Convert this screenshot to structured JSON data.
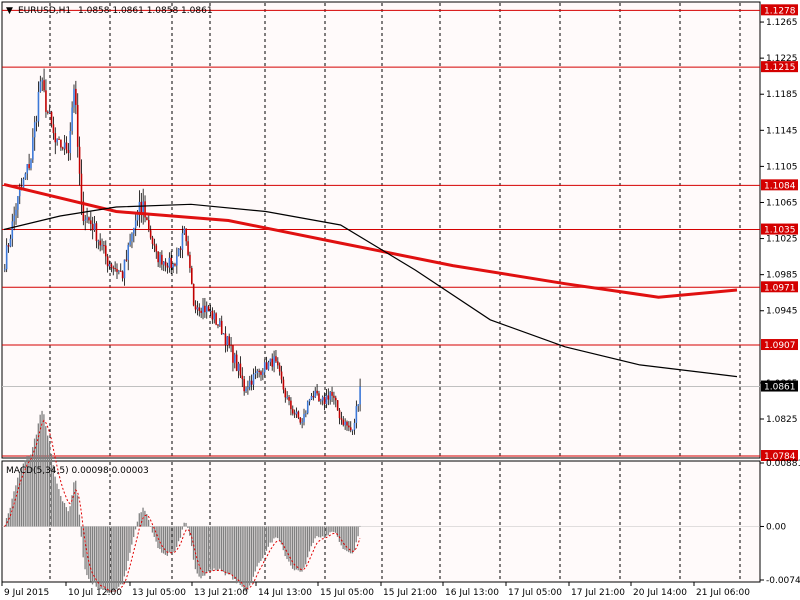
{
  "header": {
    "symbol": "EURUSD,H1",
    "ohlc": "1.0858 1.0861 1.0858 1.0861"
  },
  "current_price": "1.0861",
  "price_axis": {
    "ticks": [
      "1.1265",
      "1.1225",
      "1.1185",
      "1.1145",
      "1.1105",
      "1.1065",
      "1.1025",
      "1.0985",
      "1.0945",
      "1.0865",
      "1.0825"
    ],
    "range": [
      1.0784,
      1.1285
    ]
  },
  "horizontal_levels": [
    {
      "label": "1.1278",
      "value": 1.1278
    },
    {
      "label": "1.1215",
      "value": 1.1215
    },
    {
      "label": "1.1084",
      "value": 1.1084
    },
    {
      "label": "1.1035",
      "value": 1.1035
    },
    {
      "label": "1.0971",
      "value": 1.0971
    },
    {
      "label": "1.0907",
      "value": 1.0907
    },
    {
      "label": "1.0784",
      "value": 1.0784
    }
  ],
  "macd": {
    "label": "MACD(5,34,5) 0.00098 0.00003",
    "ticks": [
      "0.00881",
      "0.00",
      "-0.00743"
    ],
    "range": [
      -0.00743,
      0.00881
    ]
  },
  "time_axis": {
    "labels": [
      "9 Jul 2015",
      "10 Jul 12:00",
      "13 Jul 05:00",
      "13 Jul 21:00",
      "14 Jul 13:00",
      "15 Jul 05:00",
      "15 Jul 21:00",
      "16 Jul 13:00",
      "17 Jul 05:00",
      "17 Jul 21:00",
      "20 Jul 14:00",
      "21 Jul 06:00"
    ]
  },
  "colors": {
    "bull": "#3c78d8",
    "bear": "#c00000",
    "level": "#d40000",
    "ma_red": "#e01010",
    "ma_black": "#000000",
    "macd_hist": "#808080",
    "macd_signal": "#e00000",
    "current_tag": "#000000",
    "grid": "#000000"
  },
  "chart_data": {
    "type": "candlestick",
    "symbol": "EURUSD",
    "timeframe": "H1",
    "segments": [
      {
        "bars": 7,
        "start": 1.099,
        "end": 1.106,
        "vol": 0.0018
      },
      {
        "bars": 8,
        "start": 1.106,
        "end": 1.1115,
        "vol": 0.002
      },
      {
        "bars": 5,
        "start": 1.1115,
        "end": 1.12,
        "vol": 0.0025
      },
      {
        "bars": 8,
        "start": 1.12,
        "end": 1.113,
        "vol": 0.0022
      },
      {
        "bars": 7,
        "start": 1.113,
        "end": 1.1125,
        "vol": 0.0015
      },
      {
        "bars": 3,
        "start": 1.1125,
        "end": 1.1195,
        "vol": 0.002
      },
      {
        "bars": 4,
        "start": 1.1195,
        "end": 1.1055,
        "vol": 0.003
      },
      {
        "bars": 6,
        "start": 1.1055,
        "end": 1.104,
        "vol": 0.0018
      },
      {
        "bars": 8,
        "start": 1.104,
        "end": 1.1,
        "vol": 0.0017
      },
      {
        "bars": 8,
        "start": 1.1,
        "end": 1.0985,
        "vol": 0.0015
      },
      {
        "bars": 7,
        "start": 1.0985,
        "end": 1.1045,
        "vol": 0.002
      },
      {
        "bars": 4,
        "start": 1.1045,
        "end": 1.106,
        "vol": 0.003
      },
      {
        "bars": 7,
        "start": 1.106,
        "end": 1.1005,
        "vol": 0.0015
      },
      {
        "bars": 9,
        "start": 1.1005,
        "end": 1.0995,
        "vol": 0.0013
      },
      {
        "bars": 6,
        "start": 1.0995,
        "end": 1.103,
        "vol": 0.0016
      },
      {
        "bars": 5,
        "start": 1.103,
        "end": 1.0955,
        "vol": 0.0018
      },
      {
        "bars": 8,
        "start": 1.0955,
        "end": 1.0945,
        "vol": 0.0015
      },
      {
        "bars": 7,
        "start": 1.0945,
        "end": 1.0925,
        "vol": 0.0015
      },
      {
        "bars": 7,
        "start": 1.0925,
        "end": 1.089,
        "vol": 0.0016
      },
      {
        "bars": 5,
        "start": 1.089,
        "end": 1.086,
        "vol": 0.0018
      },
      {
        "bars": 9,
        "start": 1.086,
        "end": 1.088,
        "vol": 0.0013
      },
      {
        "bars": 7,
        "start": 1.088,
        "end": 1.089,
        "vol": 0.0012
      },
      {
        "bars": 8,
        "start": 1.089,
        "end": 1.084,
        "vol": 0.0014
      },
      {
        "bars": 7,
        "start": 1.084,
        "end": 1.082,
        "vol": 0.0012
      },
      {
        "bars": 5,
        "start": 1.082,
        "end": 1.0855,
        "vol": 0.0015
      },
      {
        "bars": 5,
        "start": 1.0855,
        "end": 1.084,
        "vol": 0.0015
      },
      {
        "bars": 5,
        "start": 1.084,
        "end": 1.0855,
        "vol": 0.0015
      },
      {
        "bars": 6,
        "start": 1.0855,
        "end": 1.0825,
        "vol": 0.0013
      },
      {
        "bars": 6,
        "start": 1.0825,
        "end": 1.081,
        "vol": 0.0012
      },
      {
        "bars": 4,
        "start": 1.081,
        "end": 1.0861,
        "vol": 0.0015
      }
    ],
    "ma_red": [
      [
        0,
        1.1085
      ],
      [
        60,
        1.1055
      ],
      [
        120,
        1.1045
      ],
      [
        180,
        1.102
      ],
      [
        240,
        1.0995
      ],
      [
        300,
        1.0975
      ],
      [
        350,
        1.096
      ],
      [
        392,
        1.0968
      ]
    ],
    "ma_black": [
      [
        0,
        1.1035
      ],
      [
        30,
        1.105
      ],
      [
        60,
        1.106
      ],
      [
        100,
        1.1063
      ],
      [
        140,
        1.1055
      ],
      [
        180,
        1.104
      ],
      [
        220,
        1.099
      ],
      [
        260,
        1.0935
      ],
      [
        300,
        1.0905
      ],
      [
        340,
        1.0885
      ],
      [
        380,
        1.0875
      ],
      [
        392,
        1.0872
      ]
    ],
    "levels": [
      1.1278,
      1.1215,
      1.1084,
      1.1035,
      1.0971,
      1.0907,
      1.0784
    ],
    "ylim": [
      1.0784,
      1.1285
    ],
    "macd_ylim": [
      -0.00743,
      0.00881
    ]
  }
}
